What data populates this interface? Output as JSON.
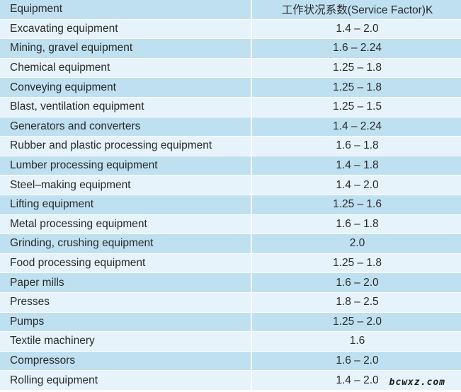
{
  "table": {
    "headers": [
      "Equipment",
      "工作状况系数(Service Factor)K"
    ],
    "rows": [
      [
        "Excavating equipment",
        "1.4 – 2.0"
      ],
      [
        "Mining, gravel equipment",
        "1.6 – 2.24"
      ],
      [
        "Chemical equipment",
        "1.25 – 1.8"
      ],
      [
        "Conveying equipment",
        "1.25 – 1.8"
      ],
      [
        "Blast, ventilation equipment",
        "1.25 – 1.5"
      ],
      [
        "Generators and converters",
        "1.4 – 2.24"
      ],
      [
        "Rubber and plastic processing equipment",
        "1.6 – 1.8"
      ],
      [
        "Lumber processing equipment",
        "1.4 – 1.8"
      ],
      [
        "Steel–making equipment",
        "1.4 – 2.0"
      ],
      [
        "Lifting equipment",
        "1.25 – 1.6"
      ],
      [
        "Metal processing equipment",
        "1.6 – 1.8"
      ],
      [
        "Grinding, crushing equipment",
        "2.0"
      ],
      [
        "Food processing equipment",
        "1.25 – 1.8"
      ],
      [
        "Paper mills",
        "1.6 – 2.0"
      ],
      [
        "Presses",
        "1.8 – 2.5"
      ],
      [
        "Pumps",
        "1.25 – 2.0"
      ],
      [
        "Textile machinery",
        "1.6"
      ],
      [
        "Compressors",
        "1.6 – 2.0"
      ],
      [
        "Rolling equipment",
        "1.4 – 2.0"
      ]
    ]
  },
  "watermark": "bcwxz.com",
  "colors": {
    "header_bg": "#bfe0f0",
    "row_light": "#e6f3fa",
    "row_dark": "#bfe0f0",
    "text": "#2a2a2a"
  }
}
